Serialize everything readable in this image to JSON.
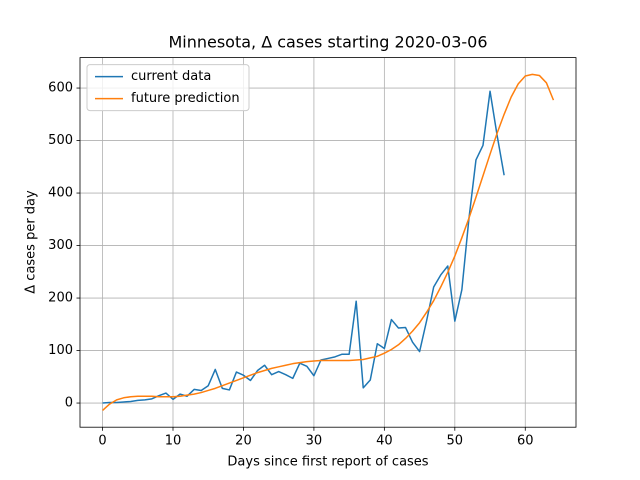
{
  "chart_data": {
    "type": "line",
    "title": "Minnesota, Δ cases starting 2020-03-06",
    "x_label": "Days since first report of cases",
    "y_label": "Δ cases per day",
    "xlim": [
      -3.2,
      67.2
    ],
    "ylim": [
      -46,
      658
    ],
    "xticks": [
      0,
      10,
      20,
      30,
      40,
      50,
      60
    ],
    "yticks": [
      0,
      100,
      200,
      300,
      400,
      500,
      600
    ],
    "grid": true,
    "legend": "upper left",
    "series": [
      {
        "name": "current data",
        "color": "#1f77b4",
        "x": [
          0,
          1,
          2,
          3,
          4,
          5,
          6,
          7,
          8,
          9,
          10,
          11,
          12,
          13,
          14,
          15,
          16,
          17,
          18,
          19,
          20,
          21,
          22,
          23,
          24,
          25,
          26,
          27,
          28,
          29,
          30,
          31,
          32,
          33,
          34,
          35,
          36,
          37,
          38,
          39,
          40,
          41,
          42,
          43,
          44,
          45,
          46,
          47,
          48,
          49,
          50,
          51,
          52,
          53,
          54,
          55,
          56,
          57
        ],
        "values": [
          0,
          1,
          1,
          2,
          3,
          5,
          6,
          8,
          14,
          19,
          7,
          17,
          13,
          26,
          24,
          33,
          64,
          28,
          25,
          59,
          53,
          43,
          62,
          72,
          54,
          60,
          54,
          47,
          76,
          70,
          52,
          82,
          85,
          88,
          93,
          93,
          194,
          29,
          44,
          113,
          104,
          159,
          143,
          144,
          116,
          98,
          157,
          221,
          244,
          261,
          156,
          216,
          351,
          463,
          491,
          594,
          510,
          434
        ]
      },
      {
        "name": "future prediction",
        "color": "#ff7f0e",
        "x": [
          0,
          1,
          2,
          3,
          4,
          5,
          6,
          7,
          8,
          9,
          10,
          11,
          12,
          13,
          14,
          15,
          16,
          17,
          18,
          19,
          20,
          21,
          22,
          23,
          24,
          25,
          26,
          27,
          28,
          29,
          30,
          31,
          32,
          33,
          34,
          35,
          36,
          37,
          38,
          39,
          40,
          41,
          42,
          43,
          44,
          45,
          46,
          47,
          48,
          49,
          50,
          51,
          52,
          53,
          54,
          55,
          56,
          57,
          58,
          59,
          60,
          61,
          62,
          63,
          64
        ],
        "values": [
          -14,
          -2,
          6,
          10,
          12,
          13,
          13,
          13,
          12,
          12,
          12,
          13,
          15,
          17,
          20,
          24,
          28,
          33,
          38,
          43,
          48,
          53,
          58,
          62,
          66,
          69,
          72,
          75,
          77,
          79,
          80,
          81,
          81,
          81,
          81,
          81,
          82,
          83,
          86,
          89,
          95,
          102,
          111,
          123,
          137,
          153,
          173,
          195,
          221,
          249,
          280,
          315,
          352,
          392,
          433,
          474,
          514,
          550,
          583,
          608,
          623,
          626,
          624,
          610,
          577
        ]
      }
    ]
  }
}
